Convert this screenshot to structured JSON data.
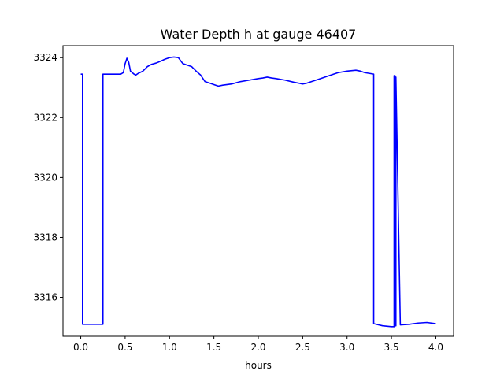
{
  "chart_data": {
    "type": "line",
    "title": "Water Depth h at gauge 46407",
    "xlabel": "hours",
    "ylabel": "",
    "xlim": [
      -0.2,
      4.2
    ],
    "ylim": [
      3314.7,
      3324.4
    ],
    "xticks": [
      0.0,
      0.5,
      1.0,
      1.5,
      2.0,
      2.5,
      3.0,
      3.5,
      4.0
    ],
    "xtick_labels": [
      "0.0",
      "0.5",
      "1.0",
      "1.5",
      "2.0",
      "2.5",
      "3.0",
      "3.5",
      "4.0"
    ],
    "yticks": [
      3316,
      3318,
      3320,
      3322,
      3324
    ],
    "ytick_labels": [
      "3316",
      "3318",
      "3320",
      "3322",
      "3324"
    ],
    "grid": false,
    "line_color": "#0000ff",
    "series": [
      {
        "x": [
          0.0,
          0.02,
          0.02,
          0.25,
          0.25,
          0.45,
          0.48,
          0.5,
          0.52,
          0.54,
          0.56,
          0.58,
          0.6,
          0.62,
          0.65,
          0.7,
          0.75,
          0.8,
          0.85,
          0.9,
          0.95,
          1.0,
          1.05,
          1.1,
          1.15,
          1.2,
          1.25,
          1.3,
          1.35,
          1.4,
          1.45,
          1.5,
          1.55,
          1.6,
          1.7,
          1.8,
          1.9,
          2.0,
          2.05,
          2.1,
          2.15,
          2.2,
          2.3,
          2.4,
          2.5,
          2.55,
          2.6,
          2.7,
          2.8,
          2.9,
          3.0,
          3.1,
          3.15,
          3.2,
          3.3,
          3.3,
          3.4,
          3.5,
          3.52,
          3.53,
          3.53,
          3.54,
          3.54,
          3.55,
          3.55,
          3.6,
          3.7,
          3.8,
          3.9,
          4.0
        ],
        "y": [
          3323.45,
          3323.45,
          3315.1,
          3315.1,
          3323.45,
          3323.45,
          3323.5,
          3323.8,
          3323.98,
          3323.85,
          3323.55,
          3323.5,
          3323.45,
          3323.42,
          3323.48,
          3323.55,
          3323.7,
          3323.78,
          3323.82,
          3323.88,
          3323.95,
          3324.0,
          3324.02,
          3324.0,
          3323.8,
          3323.75,
          3323.7,
          3323.55,
          3323.42,
          3323.2,
          3323.15,
          3323.1,
          3323.05,
          3323.08,
          3323.12,
          3323.2,
          3323.25,
          3323.3,
          3323.32,
          3323.35,
          3323.32,
          3323.3,
          3323.25,
          3323.18,
          3323.12,
          3323.15,
          3323.2,
          3323.3,
          3323.4,
          3323.5,
          3323.55,
          3323.58,
          3323.55,
          3323.5,
          3323.45,
          3315.12,
          3315.05,
          3315.02,
          3315.02,
          3315.02,
          3323.4,
          3323.4,
          3315.05,
          3315.05,
          3323.35,
          3315.08,
          3315.1,
          3315.14,
          3315.16,
          3315.12
        ]
      }
    ]
  }
}
